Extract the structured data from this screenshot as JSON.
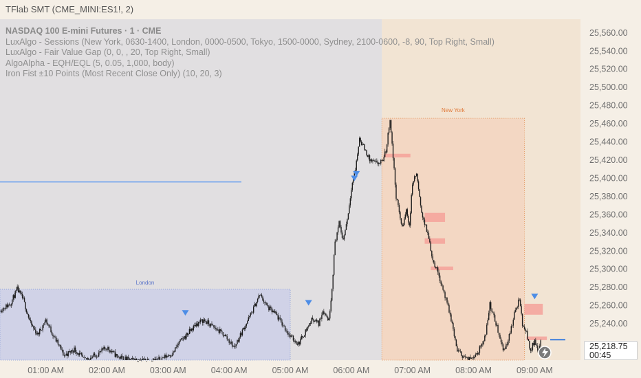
{
  "window": {
    "title": "TFlab SMT (CME_MINI:ES1!, 2)"
  },
  "legend": [
    "NASDAQ 100 E-mini Futures · 1 · CME",
    "LuxAlgo - Sessions (New York, 0630-1400, London, 0000-0500, Tokyo, 1500-0000, Sydney, 2100-0600, -8, 90, Top Right, Small)",
    "LuxAlgo - Fair Value Gap (0, 0, , 20, Top Right, Small)",
    "AlgoAlpha - EQH/EQL (5, 0.05, 1,000, body)",
    "Iron Fist ±10 Points (Most Recent Close Only) (10, 20, 3)"
  ],
  "sessions": {
    "london": {
      "label": "London",
      "start": "00:00",
      "end": "05:00",
      "high": 25278,
      "low": 25200,
      "color": "#c9cde8"
    },
    "new_york": {
      "label": "New York",
      "start": "06:30",
      "end": "08:50",
      "high": 25466,
      "low": 25200,
      "color": "#f3d5c0"
    }
  },
  "colors": {
    "background": "#f5efe6",
    "gray_zone": "#e1dfe1",
    "candle": "#1c1c1c",
    "fvg": "#f4a29a",
    "marker": "#4d8de6",
    "ny_border": "#e5965c",
    "london_border": "#8aa0da"
  },
  "chart_data": {
    "type": "candlestick",
    "interval": "1 minute",
    "ylim": [
      25200,
      25575
    ],
    "xlim": [
      "00:15",
      "09:45"
    ],
    "y_ticks": [
      "25,560.00",
      "25,540.00",
      "25,520.00",
      "25,500.00",
      "25,480.00",
      "25,460.00",
      "25,440.00",
      "25,420.00",
      "25,400.00",
      "25,380.00",
      "25,360.00",
      "25,340.00",
      "25,320.00",
      "25,300.00",
      "25,280.00",
      "25,260.00",
      "25,240.00"
    ],
    "x_ticks": [
      "01:00 AM",
      "02:00 AM",
      "03:00 AM",
      "04:00 AM",
      "05:00 AM",
      "06:00 AM",
      "07:00 AM",
      "08:00 AM",
      "09:00 AM"
    ],
    "path": [
      [
        "00:15",
        25255
      ],
      [
        "00:25",
        25262
      ],
      [
        "00:32",
        25278
      ],
      [
        "00:38",
        25266
      ],
      [
        "00:45",
        25240
      ],
      [
        "00:52",
        25228
      ],
      [
        "01:00",
        25244
      ],
      [
        "01:08",
        25226
      ],
      [
        "01:18",
        25205
      ],
      [
        "01:28",
        25212
      ],
      [
        "01:38",
        25200
      ],
      [
        "01:50",
        25206
      ],
      [
        "02:00",
        25214
      ],
      [
        "02:10",
        25204
      ],
      [
        "02:22",
        25200
      ],
      [
        "02:35",
        25200
      ],
      [
        "02:50",
        25200
      ],
      [
        "03:05",
        25208
      ],
      [
        "03:10",
        25218
      ],
      [
        "03:20",
        25230
      ],
      [
        "03:28",
        25240
      ],
      [
        "03:35",
        25244
      ],
      [
        "03:45",
        25236
      ],
      [
        "03:55",
        25228
      ],
      [
        "04:05",
        25214
      ],
      [
        "04:12",
        25230
      ],
      [
        "04:22",
        25252
      ],
      [
        "04:30",
        25272
      ],
      [
        "04:38",
        25258
      ],
      [
        "04:46",
        25250
      ],
      [
        "04:52",
        25240
      ],
      [
        "05:00",
        25226
      ],
      [
        "05:08",
        25218
      ],
      [
        "05:15",
        25232
      ],
      [
        "05:22",
        25246
      ],
      [
        "05:28",
        25240
      ],
      [
        "05:32",
        25255
      ],
      [
        "05:38",
        25244
      ],
      [
        "05:41",
        25280
      ],
      [
        "05:44",
        25330
      ],
      [
        "05:48",
        25350
      ],
      [
        "05:52",
        25332
      ],
      [
        "05:57",
        25362
      ],
      [
        "06:00",
        25390
      ],
      [
        "06:04",
        25410
      ],
      [
        "06:08",
        25444
      ],
      [
        "06:14",
        25430
      ],
      [
        "06:18",
        25420
      ],
      [
        "06:25",
        25416
      ],
      [
        "06:30",
        25418
      ],
      [
        "06:34",
        25430
      ],
      [
        "06:38",
        25466
      ],
      [
        "06:44",
        25380
      ],
      [
        "06:50",
        25345
      ],
      [
        "06:54",
        25365
      ],
      [
        "06:57",
        25348
      ],
      [
        "07:00",
        25395
      ],
      [
        "07:04",
        25405
      ],
      [
        "07:08",
        25368
      ],
      [
        "07:12",
        25350
      ],
      [
        "07:16",
        25335
      ],
      [
        "07:20",
        25310
      ],
      [
        "07:26",
        25294
      ],
      [
        "07:32",
        25270
      ],
      [
        "07:38",
        25245
      ],
      [
        "07:44",
        25210
      ],
      [
        "07:55",
        25200
      ],
      [
        "08:05",
        25210
      ],
      [
        "08:12",
        25228
      ],
      [
        "08:16",
        25262
      ],
      [
        "08:22",
        25240
      ],
      [
        "08:30",
        25210
      ],
      [
        "08:36",
        25230
      ],
      [
        "08:40",
        25250
      ],
      [
        "08:45",
        25268
      ],
      [
        "08:48",
        25240
      ],
      [
        "08:52",
        25230
      ],
      [
        "08:56",
        25210
      ],
      [
        "09:00",
        25222
      ],
      [
        "09:04",
        25210
      ],
      [
        "09:06",
        25219
      ]
    ],
    "fair_value_gaps": [
      {
        "start": "06:32",
        "end": "06:58",
        "top": 25427,
        "bottom": 25423
      },
      {
        "start": "07:12",
        "end": "07:32",
        "top": 25362,
        "bottom": 25352
      },
      {
        "start": "07:12",
        "end": "07:32",
        "top": 25334,
        "bottom": 25328
      },
      {
        "start": "07:18",
        "end": "07:40",
        "top": 25303,
        "bottom": 25299
      },
      {
        "start": "08:50",
        "end": "09:08",
        "top": 25262,
        "bottom": 25250
      },
      {
        "start": "08:52",
        "end": "09:12",
        "top": 25226,
        "bottom": 25222
      }
    ],
    "markers": [
      {
        "time": "03:17",
        "price": 25252
      },
      {
        "time": "05:18",
        "price": 25263
      },
      {
        "time": "06:03",
        "price": 25400
      },
      {
        "time": "06:05",
        "price": 25405
      },
      {
        "time": "09:00",
        "price": 25270
      }
    ],
    "blue_level": {
      "price": 25396,
      "start": "00:15",
      "end": "04:12"
    },
    "last_price": {
      "value": "25,218.75",
      "countdown": "00:45"
    }
  }
}
